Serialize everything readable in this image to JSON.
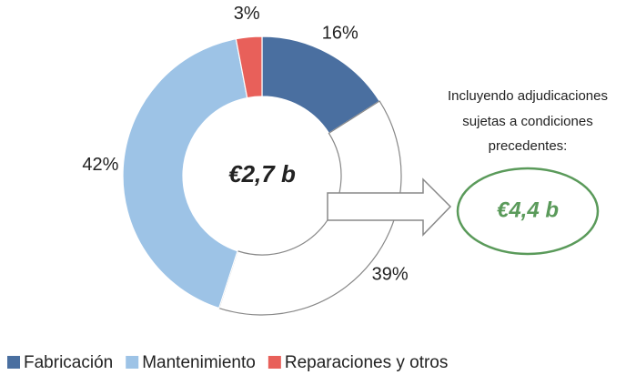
{
  "chart_data": {
    "type": "donut",
    "categories": [
      "Fabricación",
      null,
      "Mantenimiento",
      "Reparaciones y otros"
    ],
    "values": [
      16,
      39,
      42,
      3
    ],
    "value_labels": [
      "16%",
      "39%",
      "42%",
      "3%"
    ],
    "colors": [
      "#4a6fa0",
      "#ffffff",
      "#9dc3e6",
      "#e8605a"
    ],
    "center_label": "€2,7 b",
    "annotation": [
      "Incluyendo adjudicaciones",
      "sujetas a condiciones",
      "precedentes:"
    ],
    "annotation_value": "€4,4 b",
    "legend": "bottom"
  }
}
